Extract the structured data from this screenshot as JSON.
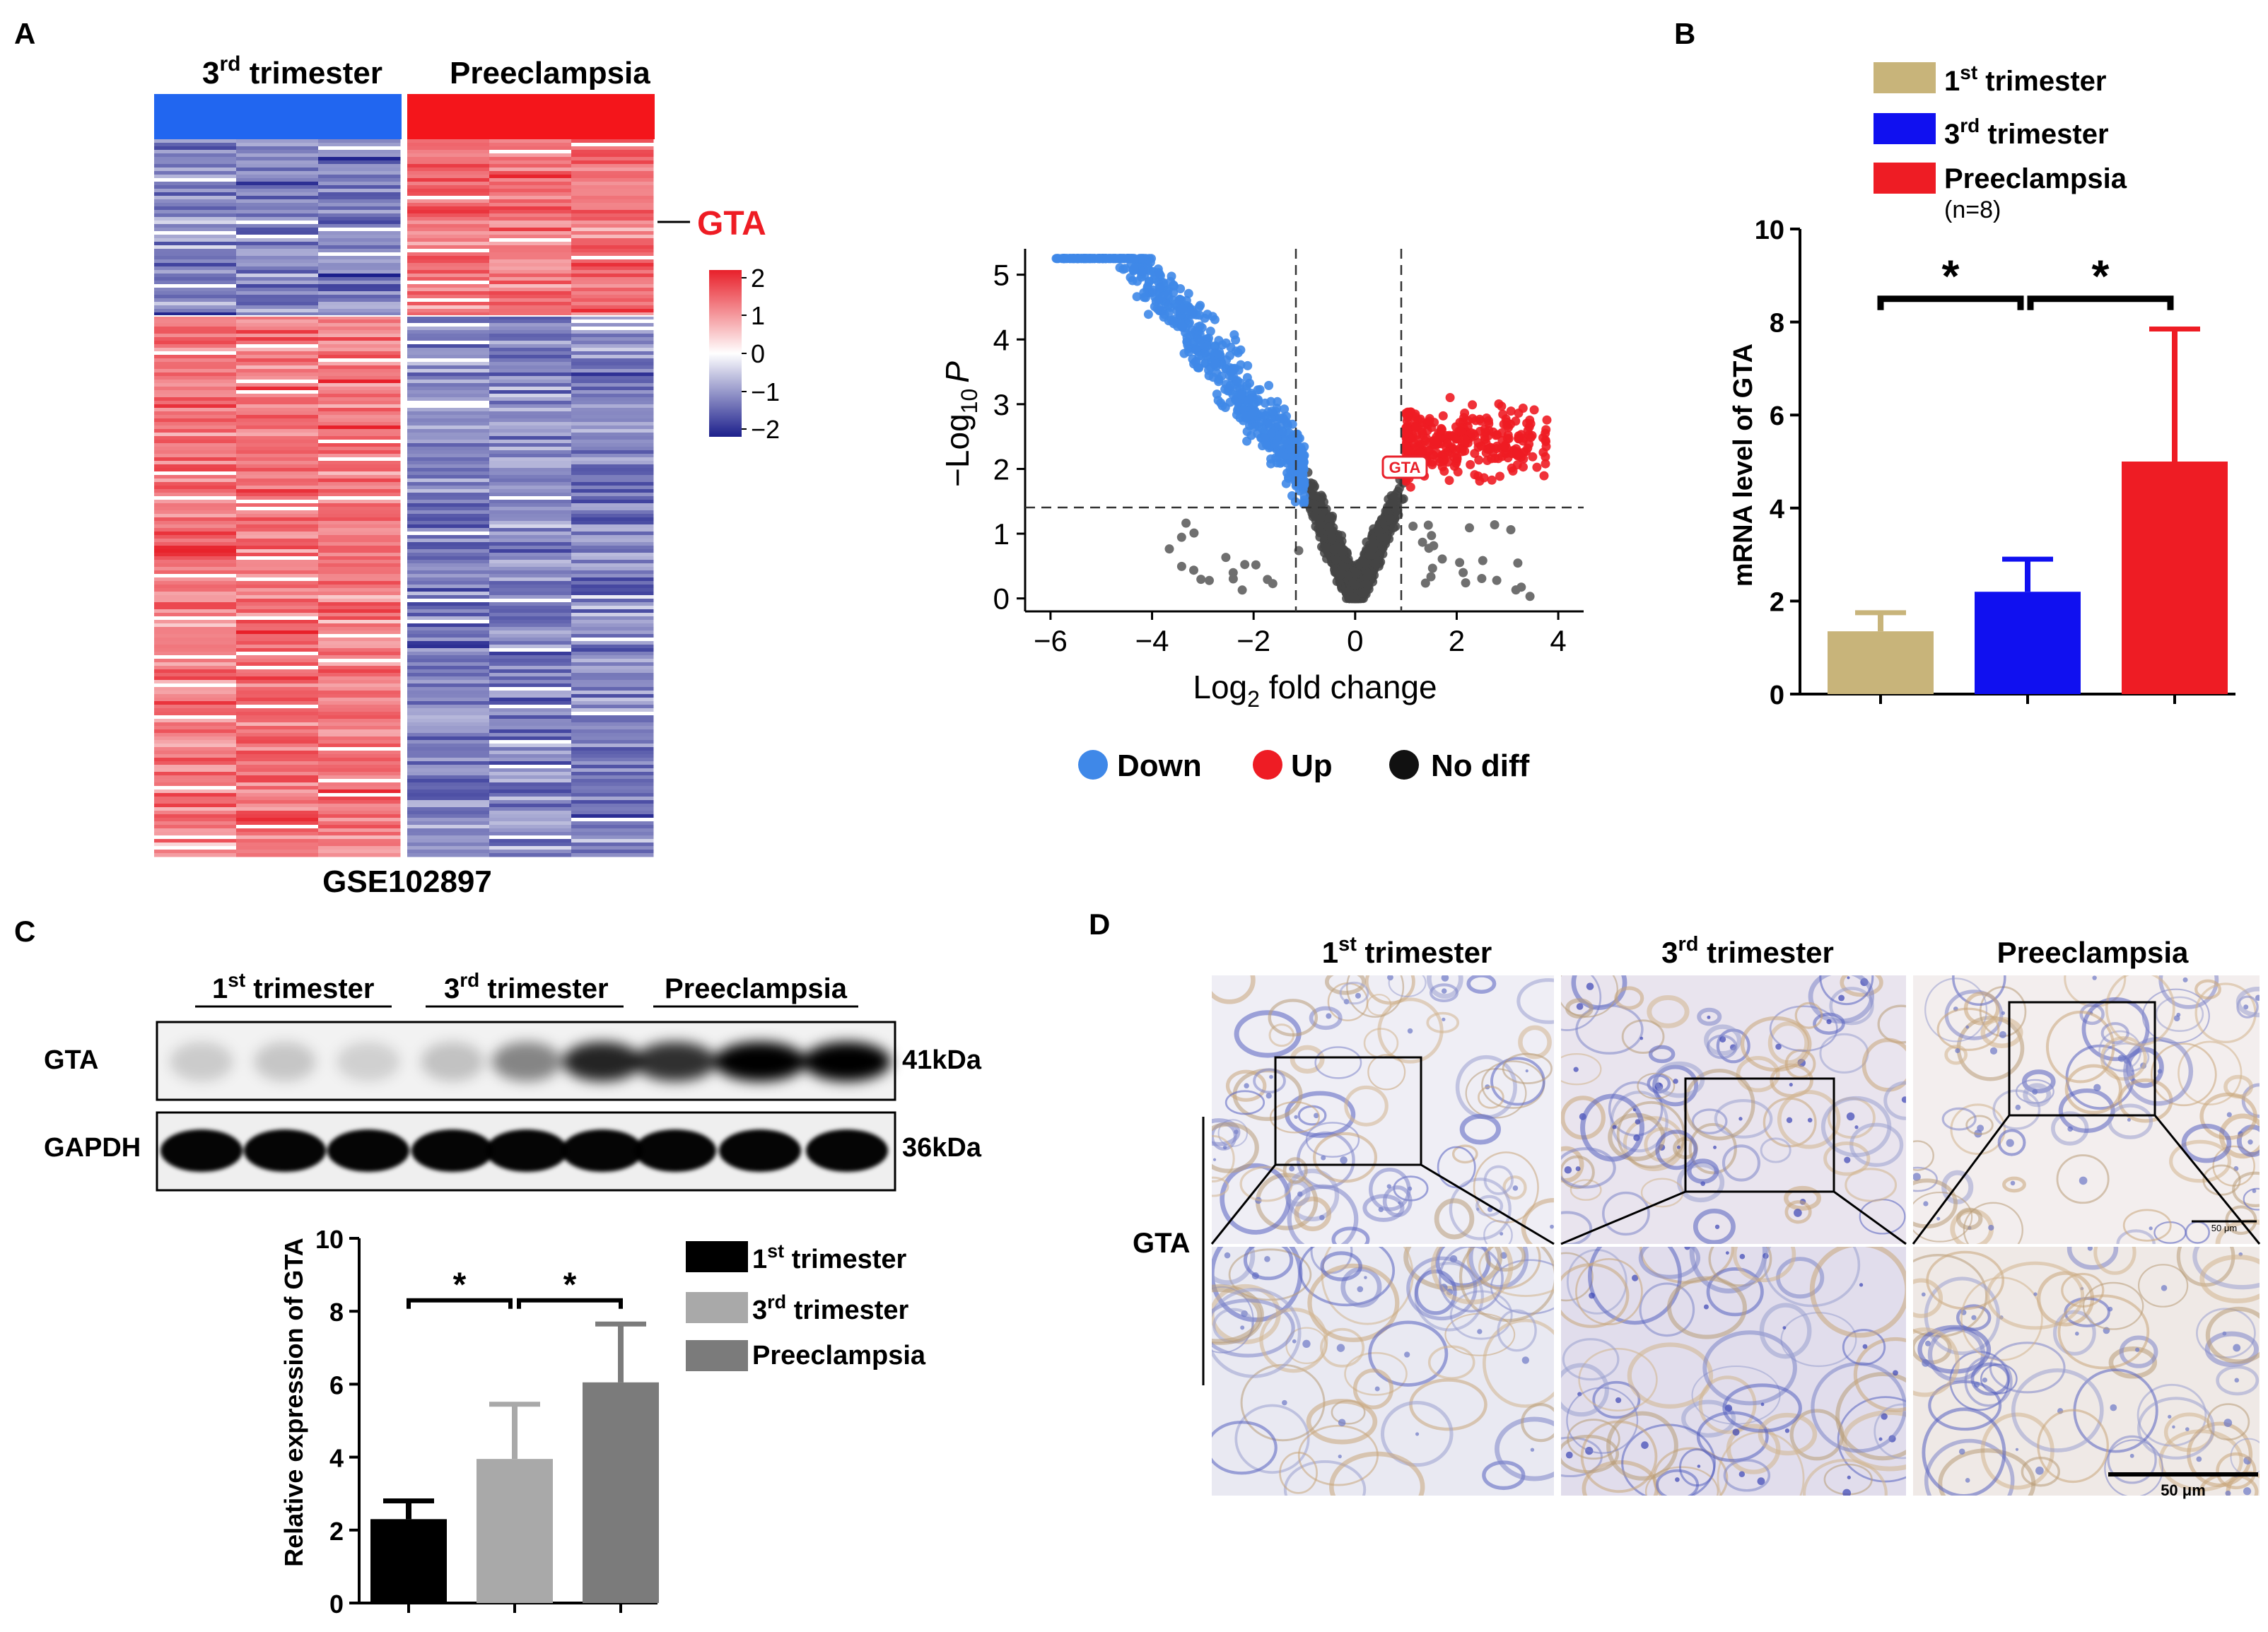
{
  "panels": {
    "a": {
      "letter": "A",
      "heatmap": {
        "group_left": "3",
        "group_left_sup": "rd",
        "group_left_rest": " trimester",
        "group_right": "Preeclampsia",
        "gene_label": "GTA",
        "dataset": "GSE102897",
        "colorbar_ticks": [
          "2",
          "1",
          "0",
          "−1",
          "−2"
        ],
        "colors": {
          "high": "#e8202a",
          "mid": "#ffffff",
          "low": "#1c1f8c",
          "group_left_color": "#2166f0",
          "group_right_color": "#f4151b"
        }
      },
      "volcano": {
        "ylabel_prefix": "−Log",
        "ylabel_sub": "10",
        "ylabel_var": "P",
        "xlabel_prefix": "Log",
        "xlabel_sub": "2",
        "xlabel_suffix": " fold change",
        "gene_tag": "GTA",
        "legend": [
          "Down",
          "Up",
          "No diff"
        ],
        "colors": {
          "down": "#3f7fe0",
          "up": "#ee1c24",
          "nodiff": "#444444"
        }
      }
    },
    "b": {
      "letter": "B",
      "legend": [
        {
          "sup": "st",
          "base": "1",
          "rest": " trimester",
          "color": "#c8b47a"
        },
        {
          "sup": "rd",
          "base": "3",
          "rest": " trimester",
          "color": "#1010f0"
        },
        {
          "sup": "",
          "base": "Preeclampsia",
          "rest": "",
          "color": "#ee1c24"
        }
      ],
      "n_label": "(n=8)",
      "ylabel": "mRNA level of GTA",
      "star": "*"
    },
    "c": {
      "letter": "C",
      "blot_groups": [
        {
          "base": "1",
          "sup": "st",
          "rest": " trimester"
        },
        {
          "base": "3",
          "sup": "rd",
          "rest": " trimester"
        },
        {
          "base": "Preeclampsia",
          "sup": "",
          "rest": ""
        }
      ],
      "rows": [
        "GTA",
        "GAPDH"
      ],
      "sizes": [
        "41kDa",
        "36kDa"
      ],
      "legend": [
        {
          "base": "1",
          "sup": "st",
          "rest": " trimester",
          "color": "#000000"
        },
        {
          "base": "3",
          "sup": "rd",
          "rest": " trimester",
          "color": "#a9a9a9"
        },
        {
          "base": "Preeclampsia",
          "sup": "",
          "rest": "",
          "color": "#7b7b7b"
        }
      ],
      "ylabel": "Relative expression of GTA",
      "star": "*"
    },
    "d": {
      "letter": "D",
      "columns": [
        {
          "base": "1",
          "sup": "st",
          "rest": " trimester"
        },
        {
          "base": "3",
          "sup": "rd",
          "rest": " trimester"
        },
        {
          "base": "Preeclampsia",
          "sup": "",
          "rest": ""
        }
      ],
      "row_label": "GTA",
      "scale_small": "50 μm",
      "scale_large": "50 μm"
    }
  },
  "chart_data": [
    {
      "type": "heatmap",
      "title": "GSE102897",
      "columns": [
        "3rd trimester 1",
        "3rd trimester 2",
        "3rd trimester 3",
        "Preeclampsia 1",
        "Preeclampsia 2",
        "Preeclampsia 3"
      ],
      "colorbar_range": [
        -2,
        2
      ],
      "highlight_gene": "GTA"
    },
    {
      "type": "scatter",
      "title": "",
      "xlabel": "Log2 fold change",
      "ylabel": "−Log10 P",
      "xlim": [
        -6.5,
        4.5
      ],
      "ylim": [
        -0.2,
        5.4
      ],
      "xticks": [
        -6,
        -4,
        -2,
        0,
        2,
        4
      ],
      "yticks": [
        0,
        1,
        2,
        3,
        4,
        5
      ],
      "thresholds": {
        "x": [
          -1,
          1
        ],
        "y": 1.3
      },
      "labeled_point": {
        "label": "GTA",
        "x": 1.0,
        "y": 2.0
      },
      "legend": [
        "Down",
        "Up",
        "No diff"
      ]
    },
    {
      "type": "bar",
      "categories": [
        "1st trimester",
        "3rd trimester",
        "Preeclampsia"
      ],
      "values": [
        1.35,
        2.2,
        5.0
      ],
      "errors": [
        0.4,
        0.7,
        2.85
      ],
      "ylabel": "mRNA level of GTA",
      "ylim": [
        0,
        10
      ],
      "yticks": [
        0,
        2,
        4,
        6,
        8,
        10
      ],
      "significance": [
        [
          "1st trimester",
          "3rd trimester",
          "*"
        ],
        [
          "3rd trimester",
          "Preeclampsia",
          "*"
        ]
      ]
    },
    {
      "type": "bar",
      "categories": [
        "1st trimester",
        "3rd trimester",
        "Preeclampsia"
      ],
      "values": [
        2.3,
        3.95,
        6.05
      ],
      "errors": [
        0.5,
        1.5,
        1.6
      ],
      "ylabel": "Relative expression of GTA",
      "ylim": [
        0,
        10
      ],
      "yticks": [
        0,
        2,
        4,
        6,
        8,
        10
      ],
      "significance": [
        [
          "1st trimester",
          "3rd trimester",
          "*"
        ],
        [
          "3rd trimester",
          "Preeclampsia",
          "*"
        ]
      ]
    }
  ]
}
